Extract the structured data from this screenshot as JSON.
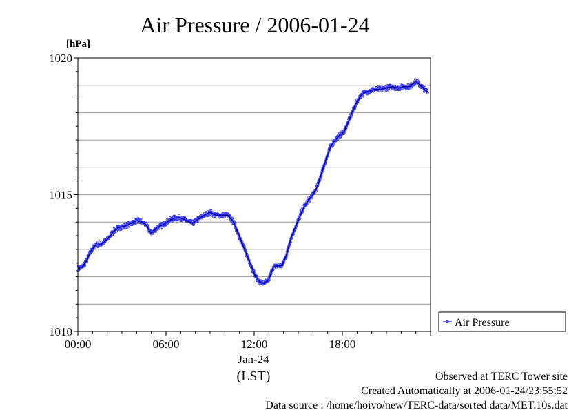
{
  "chart_data": {
    "type": "line",
    "title": "Air Pressure / 2006-01-24",
    "ylabel": "[hPa]",
    "xlabel_date": "Jan-24",
    "xlabel_tz": "(LST)",
    "ylim": [
      1010,
      1020
    ],
    "xlim_hours": [
      0,
      24
    ],
    "y_ticks": [
      "1010",
      "1015",
      "1020"
    ],
    "x_ticks": [
      {
        "hour": 0,
        "label": "00:00"
      },
      {
        "hour": 6,
        "label": "06:00"
      },
      {
        "hour": 12,
        "label": "12:00"
      },
      {
        "hour": 18,
        "label": "18:00"
      }
    ],
    "grid": true,
    "legend_position": "right",
    "colors": {
      "series": "#3a3af0",
      "series_dark": "#0000a0"
    },
    "series": [
      {
        "name": "Air Pressure",
        "points": [
          [
            0.0,
            1012.3
          ],
          [
            0.3,
            1012.35
          ],
          [
            0.6,
            1012.6
          ],
          [
            0.9,
            1012.95
          ],
          [
            1.2,
            1013.15
          ],
          [
            1.6,
            1013.2
          ],
          [
            2.0,
            1013.35
          ],
          [
            2.4,
            1013.65
          ],
          [
            2.8,
            1013.8
          ],
          [
            3.2,
            1013.85
          ],
          [
            3.6,
            1013.95
          ],
          [
            4.0,
            1014.05
          ],
          [
            4.4,
            1014.0
          ],
          [
            4.7,
            1013.85
          ],
          [
            4.95,
            1013.6
          ],
          [
            5.15,
            1013.65
          ],
          [
            5.4,
            1013.8
          ],
          [
            5.8,
            1013.9
          ],
          [
            6.2,
            1014.05
          ],
          [
            6.6,
            1014.15
          ],
          [
            7.0,
            1014.15
          ],
          [
            7.4,
            1014.05
          ],
          [
            7.8,
            1013.95
          ],
          [
            8.2,
            1014.1
          ],
          [
            8.6,
            1014.25
          ],
          [
            9.0,
            1014.35
          ],
          [
            9.4,
            1014.25
          ],
          [
            9.8,
            1014.25
          ],
          [
            10.2,
            1014.25
          ],
          [
            10.6,
            1014.0
          ],
          [
            10.9,
            1013.6
          ],
          [
            11.2,
            1013.2
          ],
          [
            11.5,
            1012.8
          ],
          [
            11.8,
            1012.4
          ],
          [
            12.1,
            1012.0
          ],
          [
            12.4,
            1011.8
          ],
          [
            12.7,
            1011.75
          ],
          [
            13.0,
            1011.9
          ],
          [
            13.3,
            1012.35
          ],
          [
            13.6,
            1012.4
          ],
          [
            13.9,
            1012.4
          ],
          [
            14.2,
            1012.8
          ],
          [
            14.5,
            1013.4
          ],
          [
            14.8,
            1013.8
          ],
          [
            15.1,
            1014.2
          ],
          [
            15.4,
            1014.55
          ],
          [
            15.7,
            1014.8
          ],
          [
            16.0,
            1015.0
          ],
          [
            16.3,
            1015.3
          ],
          [
            16.6,
            1015.8
          ],
          [
            16.9,
            1016.3
          ],
          [
            17.2,
            1016.75
          ],
          [
            17.5,
            1017.0
          ],
          [
            17.8,
            1017.15
          ],
          [
            18.1,
            1017.3
          ],
          [
            18.4,
            1017.65
          ],
          [
            18.7,
            1018.05
          ],
          [
            19.0,
            1018.4
          ],
          [
            19.3,
            1018.65
          ],
          [
            19.6,
            1018.75
          ],
          [
            19.9,
            1018.8
          ],
          [
            20.2,
            1018.85
          ],
          [
            20.6,
            1018.85
          ],
          [
            21.0,
            1018.9
          ],
          [
            21.4,
            1018.95
          ],
          [
            21.8,
            1018.9
          ],
          [
            22.2,
            1018.95
          ],
          [
            22.6,
            1018.95
          ],
          [
            23.0,
            1019.15
          ],
          [
            23.3,
            1019.0
          ],
          [
            23.6,
            1018.85
          ],
          [
            23.8,
            1018.75
          ]
        ]
      }
    ]
  },
  "footer": {
    "line1": "Observed at TERC Tower site",
    "line2": "Created Automatically at 2006-01-24/23:55:52",
    "line3": "Data source : /home/hoivo/new/TERC-data/sorted  data/MET.10s.dat"
  }
}
